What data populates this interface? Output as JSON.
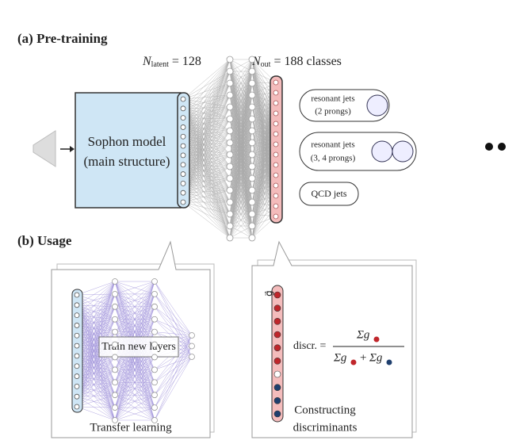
{
  "pretraining": {
    "title": "(a) Pre-training",
    "latent": {
      "symbol": "N",
      "subscript": "latent",
      "rest": "= 128"
    },
    "output": {
      "symbol": "N",
      "subscript": "out",
      "rest": "= 188 classes"
    },
    "model": {
      "line1": "Sophon model",
      "line2": "(main structure)"
    },
    "classes": [
      {
        "line1": "resonant jets",
        "line2": "(2 prongs)"
      },
      {
        "line1": "resonant jets",
        "line2": "(3, 4 prongs)"
      },
      {
        "line1": "QCD jets"
      }
    ]
  },
  "usage": {
    "title": "(b) Usage",
    "transfer": {
      "box": "Train new layers",
      "caption": "Transfer learning"
    },
    "discriminant": {
      "vector": "g⃗",
      "lhs": "discr. =",
      "numerator": "Σg",
      "denominator_left": "Σg",
      "plus": "+",
      "denominator_right": "Σg",
      "caption1": "Constructing",
      "caption2": "discriminants"
    }
  }
}
